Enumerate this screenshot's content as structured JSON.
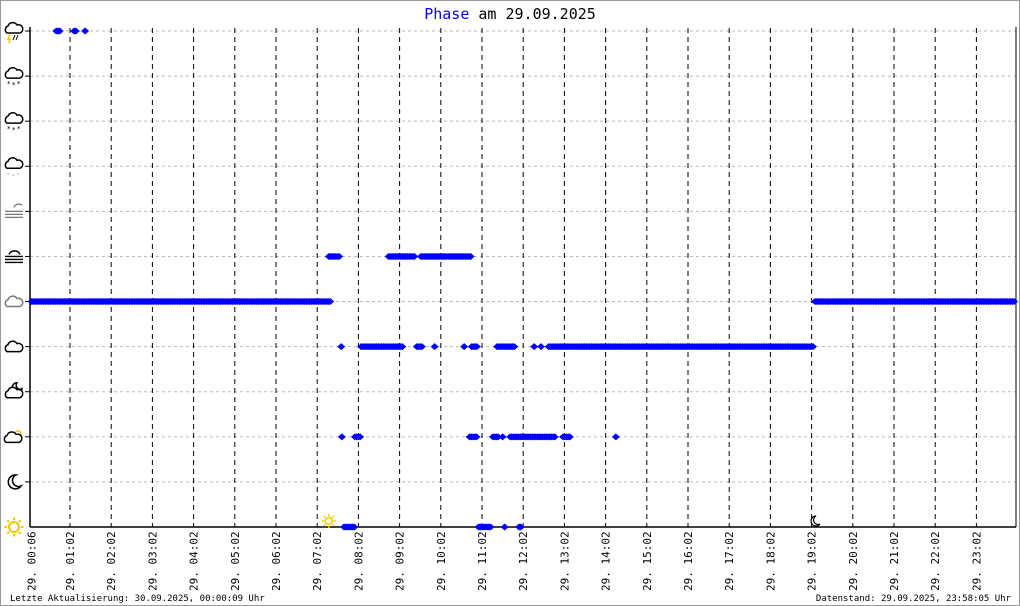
{
  "title": {
    "highlight": "Phase",
    "rest": "am 29.09.2025"
  },
  "footer": {
    "left": "Letzte Aktualisierung: 30.09.2025, 00:00:09 Uhr",
    "right": "Datenstand: 29.09.2025, 23:58:05 Uhr"
  },
  "chart_data": {
    "type": "scatter",
    "title": "Phase am 29.09.2025",
    "x_range": [
      "00:06",
      "23:58"
    ],
    "x_tick_labels": [
      "29. 00:06",
      "29. 01:02",
      "29. 02:02",
      "29. 03:02",
      "29. 04:02",
      "29. 05:02",
      "29. 06:02",
      "29. 07:02",
      "29. 08:02",
      "29. 09:02",
      "29. 10:02",
      "29. 11:02",
      "29. 12:02",
      "29. 13:02",
      "29. 14:02",
      "29. 15:02",
      "29. 16:02",
      "29. 17:02",
      "29. 18:02",
      "29. 19:02",
      "29. 20:02",
      "29. 21:02",
      "29. 22:02",
      "29. 23:02"
    ],
    "y_levels": [
      "sun",
      "moon",
      "cloud-sun",
      "cloud-moon",
      "cloud",
      "cloud-overcast",
      "fog",
      "fog-partial",
      "rain",
      "snow-light",
      "snow",
      "thunderstorm"
    ],
    "grid": true,
    "marker_color": "#0000ff",
    "sunrise": "07:19",
    "sunset": "19:07",
    "runs": [
      {
        "level": 11,
        "spans": [
          [
            "00:42",
            "00:49"
          ],
          [
            "01:08",
            "01:12"
          ],
          [
            "01:24",
            "01:25"
          ]
        ]
      },
      {
        "level": 6,
        "spans": [
          [
            "07:19",
            "07:34"
          ],
          [
            "08:46",
            "09:24"
          ],
          [
            "09:33",
            "10:46"
          ]
        ]
      },
      {
        "level": 5,
        "spans": [
          [
            "00:06",
            "07:22"
          ],
          [
            "19:07",
            "23:58"
          ]
        ]
      },
      {
        "level": 4,
        "spans": [
          [
            "07:37",
            "07:37"
          ],
          [
            "08:06",
            "09:07"
          ],
          [
            "09:27",
            "09:36"
          ],
          [
            "09:53",
            "09:53"
          ],
          [
            "10:36",
            "10:36"
          ],
          [
            "10:47",
            "10:55"
          ],
          [
            "11:24",
            "11:50"
          ],
          [
            "12:18",
            "12:18"
          ],
          [
            "12:28",
            "12:28"
          ],
          [
            "12:39",
            "19:05"
          ]
        ]
      },
      {
        "level": 2,
        "spans": [
          [
            "07:38",
            "07:38"
          ],
          [
            "07:57",
            "08:06"
          ],
          [
            "10:44",
            "10:55"
          ],
          [
            "11:18",
            "11:26"
          ],
          [
            "11:32",
            "11:32"
          ],
          [
            "11:43",
            "12:50"
          ],
          [
            "13:00",
            "13:12"
          ],
          [
            "14:17",
            "14:17"
          ]
        ]
      },
      {
        "level": 0,
        "spans": [
          [
            "07:41",
            "07:58"
          ],
          [
            "10:57",
            "11:15"
          ],
          [
            "11:35",
            "11:35"
          ],
          [
            "11:56",
            "12:00"
          ]
        ]
      }
    ]
  }
}
